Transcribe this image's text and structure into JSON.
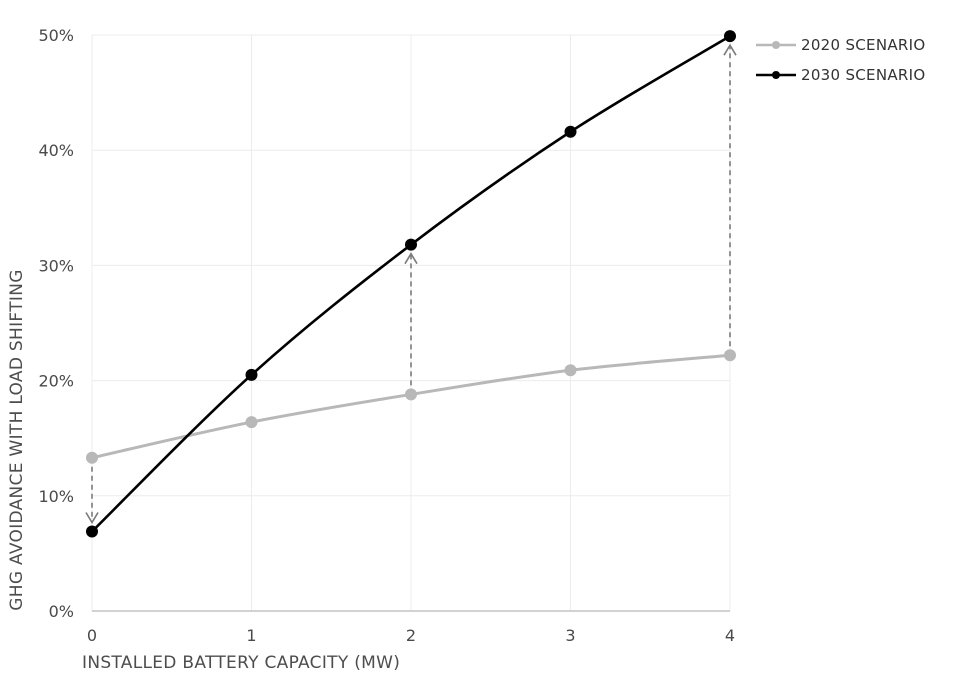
{
  "chart_data": {
    "type": "line",
    "xlabel": "INSTALLED BATTERY CAPACITY (MW)",
    "ylabel": "GHG AVOIDANCE WITH LOAD SHIFTING",
    "x": [
      0,
      1,
      2,
      3,
      4
    ],
    "x_tick_labels": [
      "0",
      "1",
      "2",
      "3",
      "4"
    ],
    "y_tick_labels": [
      "0%",
      "10%",
      "20%",
      "30%",
      "40%",
      "50%"
    ],
    "y_ticks": [
      0,
      10,
      20,
      30,
      40,
      50
    ],
    "xlim": [
      0,
      4
    ],
    "ylim": [
      0,
      50
    ],
    "grid": true,
    "legend_position": "top-right",
    "series": [
      {
        "name": "2020 SCENARIO",
        "values": [
          13.3,
          16.4,
          18.8,
          20.9,
          22.2
        ],
        "color": "#b8b8b8"
      },
      {
        "name": "2030 SCENARIO",
        "values": [
          6.9,
          20.5,
          31.8,
          41.6,
          49.9
        ],
        "color": "#000000"
      }
    ],
    "arrows": [
      {
        "x": 0,
        "from": 13.3,
        "to": 6.9
      },
      {
        "x": 2,
        "from": 18.8,
        "to": 31.8
      },
      {
        "x": 4,
        "from": 22.2,
        "to": 49.9
      }
    ]
  }
}
